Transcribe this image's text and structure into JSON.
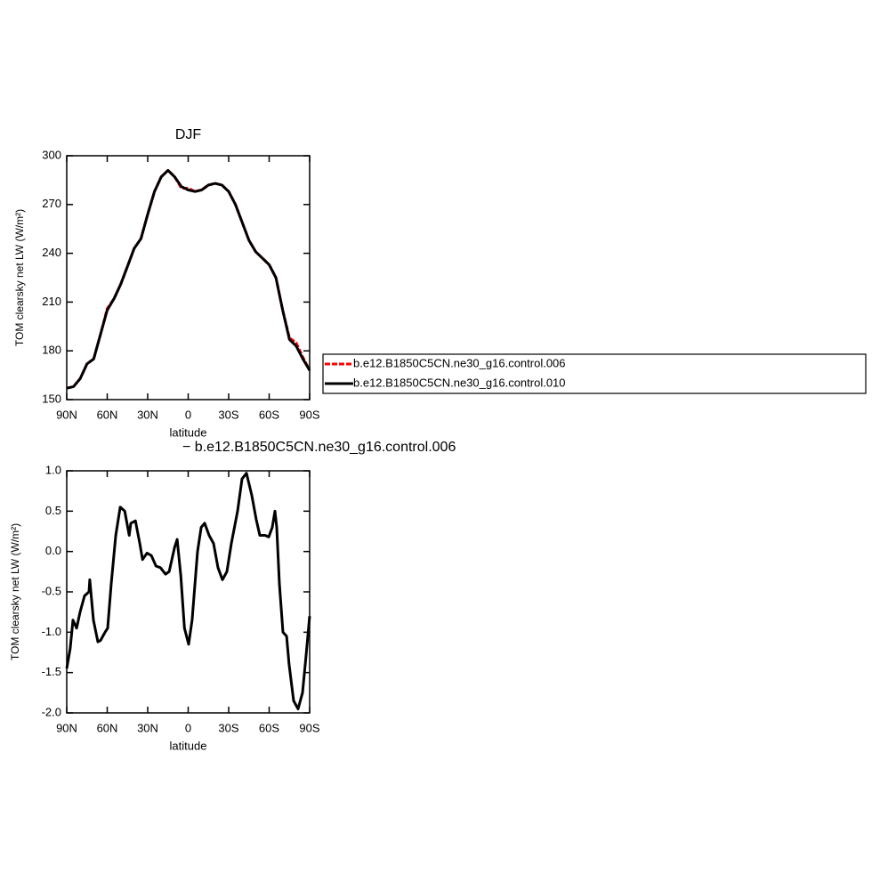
{
  "chart_data": [
    {
      "type": "line",
      "title": "DJF",
      "ylabel": "TOM clearsky net LW (W/m²)",
      "xlabel": "latitude",
      "x": [
        90,
        85,
        80,
        75,
        70,
        65,
        60,
        55,
        50,
        45,
        40,
        35,
        30,
        25,
        20,
        15,
        10,
        5,
        0,
        -5,
        -10,
        -15,
        -20,
        -25,
        -30,
        -35,
        -40,
        -45,
        -50,
        -55,
        -60,
        -65,
        -70,
        -75,
        -80,
        -85,
        -90
      ],
      "series": [
        {
          "name": "b.e12.B1850C5CN.ne30_g16.control.006",
          "color": "#ff0000",
          "line_style": "dashed",
          "values": [
            157,
            158,
            163,
            172,
            175,
            190,
            206,
            212,
            221,
            232,
            243,
            249,
            264,
            278,
            287,
            291,
            287,
            280,
            280,
            278,
            279,
            282,
            283,
            282,
            278,
            270,
            259,
            248,
            241,
            237,
            233,
            225,
            205,
            188,
            185,
            176,
            168
          ]
        },
        {
          "name": "b.e12.B1850C5CN.ne30_g16.control.010",
          "color": "#000000",
          "line_style": "solid",
          "values": [
            157,
            158,
            163,
            172,
            175,
            190,
            205,
            212,
            221,
            232,
            243,
            249,
            264,
            278,
            287,
            291,
            287,
            281,
            279,
            278,
            279,
            282,
            283,
            282,
            278,
            270,
            259,
            248,
            241,
            237,
            233,
            225,
            205,
            187,
            183,
            175,
            168
          ]
        }
      ],
      "xlim": [
        90,
        -90
      ],
      "xticks": [
        {
          "value": 90,
          "label": "90N"
        },
        {
          "value": 60,
          "label": "60N"
        },
        {
          "value": 30,
          "label": "30N"
        },
        0,
        {
          "value": -30,
          "label": "30S"
        },
        {
          "value": -60,
          "label": "60S"
        },
        {
          "value": -90,
          "label": "90S"
        }
      ],
      "ylim": [
        150,
        300
      ],
      "yticks": [
        150,
        180,
        210,
        240,
        270,
        300
      ],
      "legend": "right"
    },
    {
      "type": "line",
      "title": "− b.e12.B1850C5CN.ne30_g16.control.006",
      "ylabel": "TOM clearsky net LW (W/m²)",
      "xlabel": "latitude",
      "x": [
        90,
        87.4,
        85.4,
        82.7,
        80.1,
        76.8,
        73.5,
        72.9,
        70.2,
        66.9,
        64.9,
        61.6,
        59.7,
        57,
        53.7,
        50.4,
        47,
        43.7,
        42.5,
        39.1,
        35.9,
        33.8,
        30.5,
        27.3,
        23.9,
        20.6,
        16.8,
        14.1,
        10.1,
        8.2,
        5.5,
        2.8,
        -0.3,
        -2.9,
        -6.9,
        -9.6,
        -12.2,
        -15.5,
        -18.8,
        -22.1,
        -25.4,
        -28.7,
        -32,
        -36.6,
        -39.9,
        -43.2,
        -47.1,
        -50.4,
        -53.1,
        -57,
        -59.7,
        -62.3,
        -64.3,
        -65.6,
        -67.6,
        -70.2,
        -72.9,
        -74.8,
        -78.1,
        -81.4,
        -84.7,
        -87.3,
        -90
      ],
      "values": [
        -1.45,
        -1.2,
        -0.85,
        -0.95,
        -0.75,
        -0.55,
        -0.5,
        -0.35,
        -0.85,
        -1.12,
        -1.1,
        -1.0,
        -0.95,
        -0.4,
        0.2,
        0.55,
        0.5,
        0.2,
        0.35,
        0.38,
        0.1,
        -0.1,
        -0.02,
        -0.05,
        -0.18,
        -0.2,
        -0.28,
        -0.25,
        0.05,
        0.15,
        -0.3,
        -0.95,
        -1.15,
        -0.85,
        0.0,
        0.3,
        0.35,
        0.2,
        0.1,
        -0.2,
        -0.35,
        -0.25,
        0.1,
        0.5,
        0.9,
        0.97,
        0.7,
        0.4,
        0.2,
        0.2,
        0.18,
        0.3,
        0.5,
        0.3,
        -0.4,
        -1.0,
        -1.05,
        -1.4,
        -1.85,
        -1.95,
        -1.75,
        -1.3,
        -0.8
      ],
      "color": "#000000",
      "xlim": [
        90,
        -90
      ],
      "xticks": [
        {
          "value": 90,
          "label": "90N"
        },
        {
          "value": 60,
          "label": "60N"
        },
        {
          "value": 30,
          "label": "30N"
        },
        0,
        {
          "value": -30,
          "label": "30S"
        },
        {
          "value": -60,
          "label": "60S"
        },
        {
          "value": -90,
          "label": "90S"
        }
      ],
      "ylim": [
        -2,
        1
      ],
      "yticks": [
        {
          "value": -2,
          "label": "-2.0"
        },
        -1.5,
        {
          "value": -1,
          "label": "-1.0"
        },
        -0.5,
        {
          "value": 0,
          "label": "0.0"
        },
        0.5,
        {
          "value": 1,
          "label": "1.0"
        }
      ]
    }
  ]
}
